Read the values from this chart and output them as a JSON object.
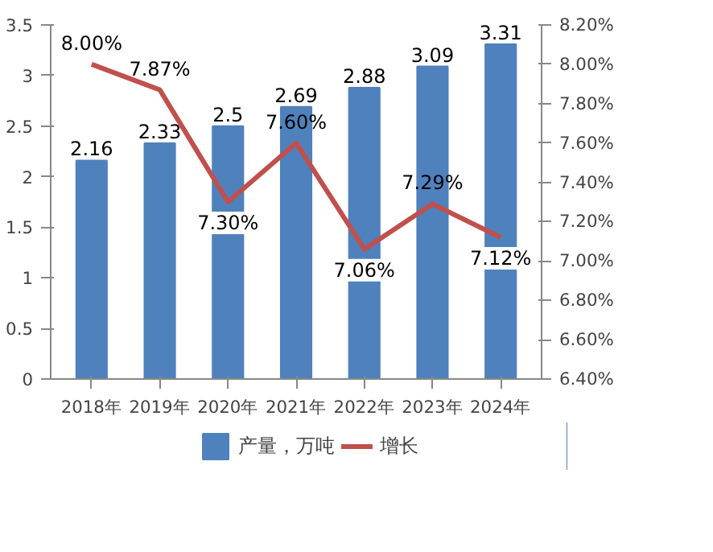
{
  "chart_data": {
    "type": "bar",
    "categories": [
      "2018年",
      "2019年",
      "2020年",
      "2021年",
      "2022年",
      "2023年",
      "2024年"
    ],
    "series": [
      {
        "name": "产量，万吨",
        "color": "#4f81bd",
        "values": [
          2.16,
          2.33,
          2.5,
          2.69,
          2.88,
          3.09,
          3.31
        ],
        "value_labels": [
          "2.16",
          "2.33",
          "2.5",
          "2.69",
          "2.88",
          "3.09",
          "3.31"
        ]
      },
      {
        "name": "增长",
        "type": "line",
        "axis": "y2",
        "color": "#c0504d",
        "values": [
          8.0,
          7.87,
          7.3,
          7.6,
          7.06,
          7.29,
          7.12
        ],
        "value_labels": [
          "8.00%",
          "7.87%",
          "7.30%",
          "7.60%",
          "7.06%",
          "7.29%",
          "7.12%"
        ]
      }
    ],
    "ylim": [
      0,
      3.5
    ],
    "yticks": [
      0,
      0.5,
      1,
      1.5,
      2,
      2.5,
      3,
      3.5
    ],
    "y2lim": [
      6.4,
      8.2
    ],
    "y2ticks": [
      {
        "value": 6.4,
        "label": "6.40%"
      },
      {
        "value": 6.6,
        "label": "6.60%"
      },
      {
        "value": 6.8,
        "label": "6.80%"
      },
      {
        "value": 7.0,
        "label": "7.00%"
      },
      {
        "value": 7.2,
        "label": "7.20%"
      },
      {
        "value": 7.4,
        "label": "7.40%"
      },
      {
        "value": 7.6,
        "label": "7.60%"
      },
      {
        "value": 7.8,
        "label": "7.80%"
      },
      {
        "value": 8.0,
        "label": "8.00%"
      },
      {
        "value": 8.2,
        "label": "8.20%"
      }
    ],
    "legend": "bottom",
    "grid": false,
    "marker": "none",
    "line_style": "solid"
  }
}
